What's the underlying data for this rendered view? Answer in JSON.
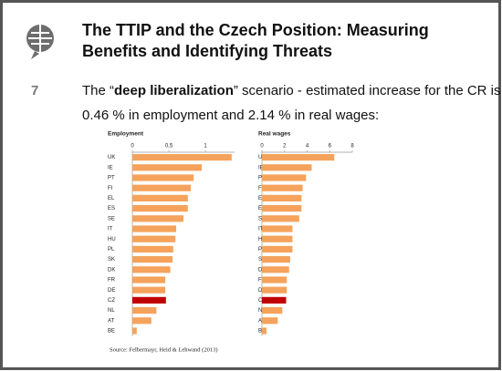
{
  "slide": {
    "title_lines": [
      "The TTIP and the Czech Position: Measuring",
      "Benefits and Identifying Threats"
    ],
    "number": "7",
    "body_parts": [
      "The “",
      "deep liberalization",
      "” scenario - estimated increase for the CR is",
      "0.46 % in employment and 2.14 % in real wages:"
    ],
    "source": "Source: Felbermayr, Heid & Lehwand (2013)"
  },
  "chart_data": [
    {
      "type": "hbar",
      "title": "Employment",
      "categories": [
        "UK",
        "IE",
        "PT",
        "FI",
        "EL",
        "ES",
        "SE",
        "IT",
        "HU",
        "PL",
        "SK",
        "DK",
        "FR",
        "DE",
        "CZ",
        "NL",
        "AT",
        "BE"
      ],
      "values": [
        1.36,
        0.95,
        0.84,
        0.8,
        0.76,
        0.76,
        0.7,
        0.6,
        0.59,
        0.56,
        0.55,
        0.52,
        0.45,
        0.45,
        0.46,
        0.33,
        0.26,
        0.06
      ],
      "color": "#f5a35c",
      "highlight": {
        "category": "CZ",
        "color": "#c00000"
      },
      "xlim": [
        0,
        1.4
      ],
      "xticks": [
        0,
        {
          "value": 0.5,
          "label": "0,5"
        },
        1
      ]
    },
    {
      "type": "hbar",
      "title": "Real wages",
      "categories": [
        "UK",
        "IE",
        "PT",
        "FI",
        "EL",
        "ES",
        "SE",
        "IT",
        "HU",
        "PL",
        "SK",
        "DK",
        "FR",
        "DE",
        "CZ",
        "NL",
        "AT",
        "BE"
      ],
      "values": [
        6.4,
        4.4,
        3.9,
        3.6,
        3.5,
        3.5,
        3.3,
        2.7,
        2.7,
        2.7,
        2.5,
        2.4,
        2.2,
        2.2,
        2.14,
        1.8,
        1.4,
        0.4
      ],
      "color": "#f5a35c",
      "highlight": {
        "category": "CZ",
        "color": "#c00000"
      },
      "xlim": [
        0,
        8
      ],
      "xticks": [
        0,
        2,
        4,
        6,
        8
      ]
    }
  ]
}
